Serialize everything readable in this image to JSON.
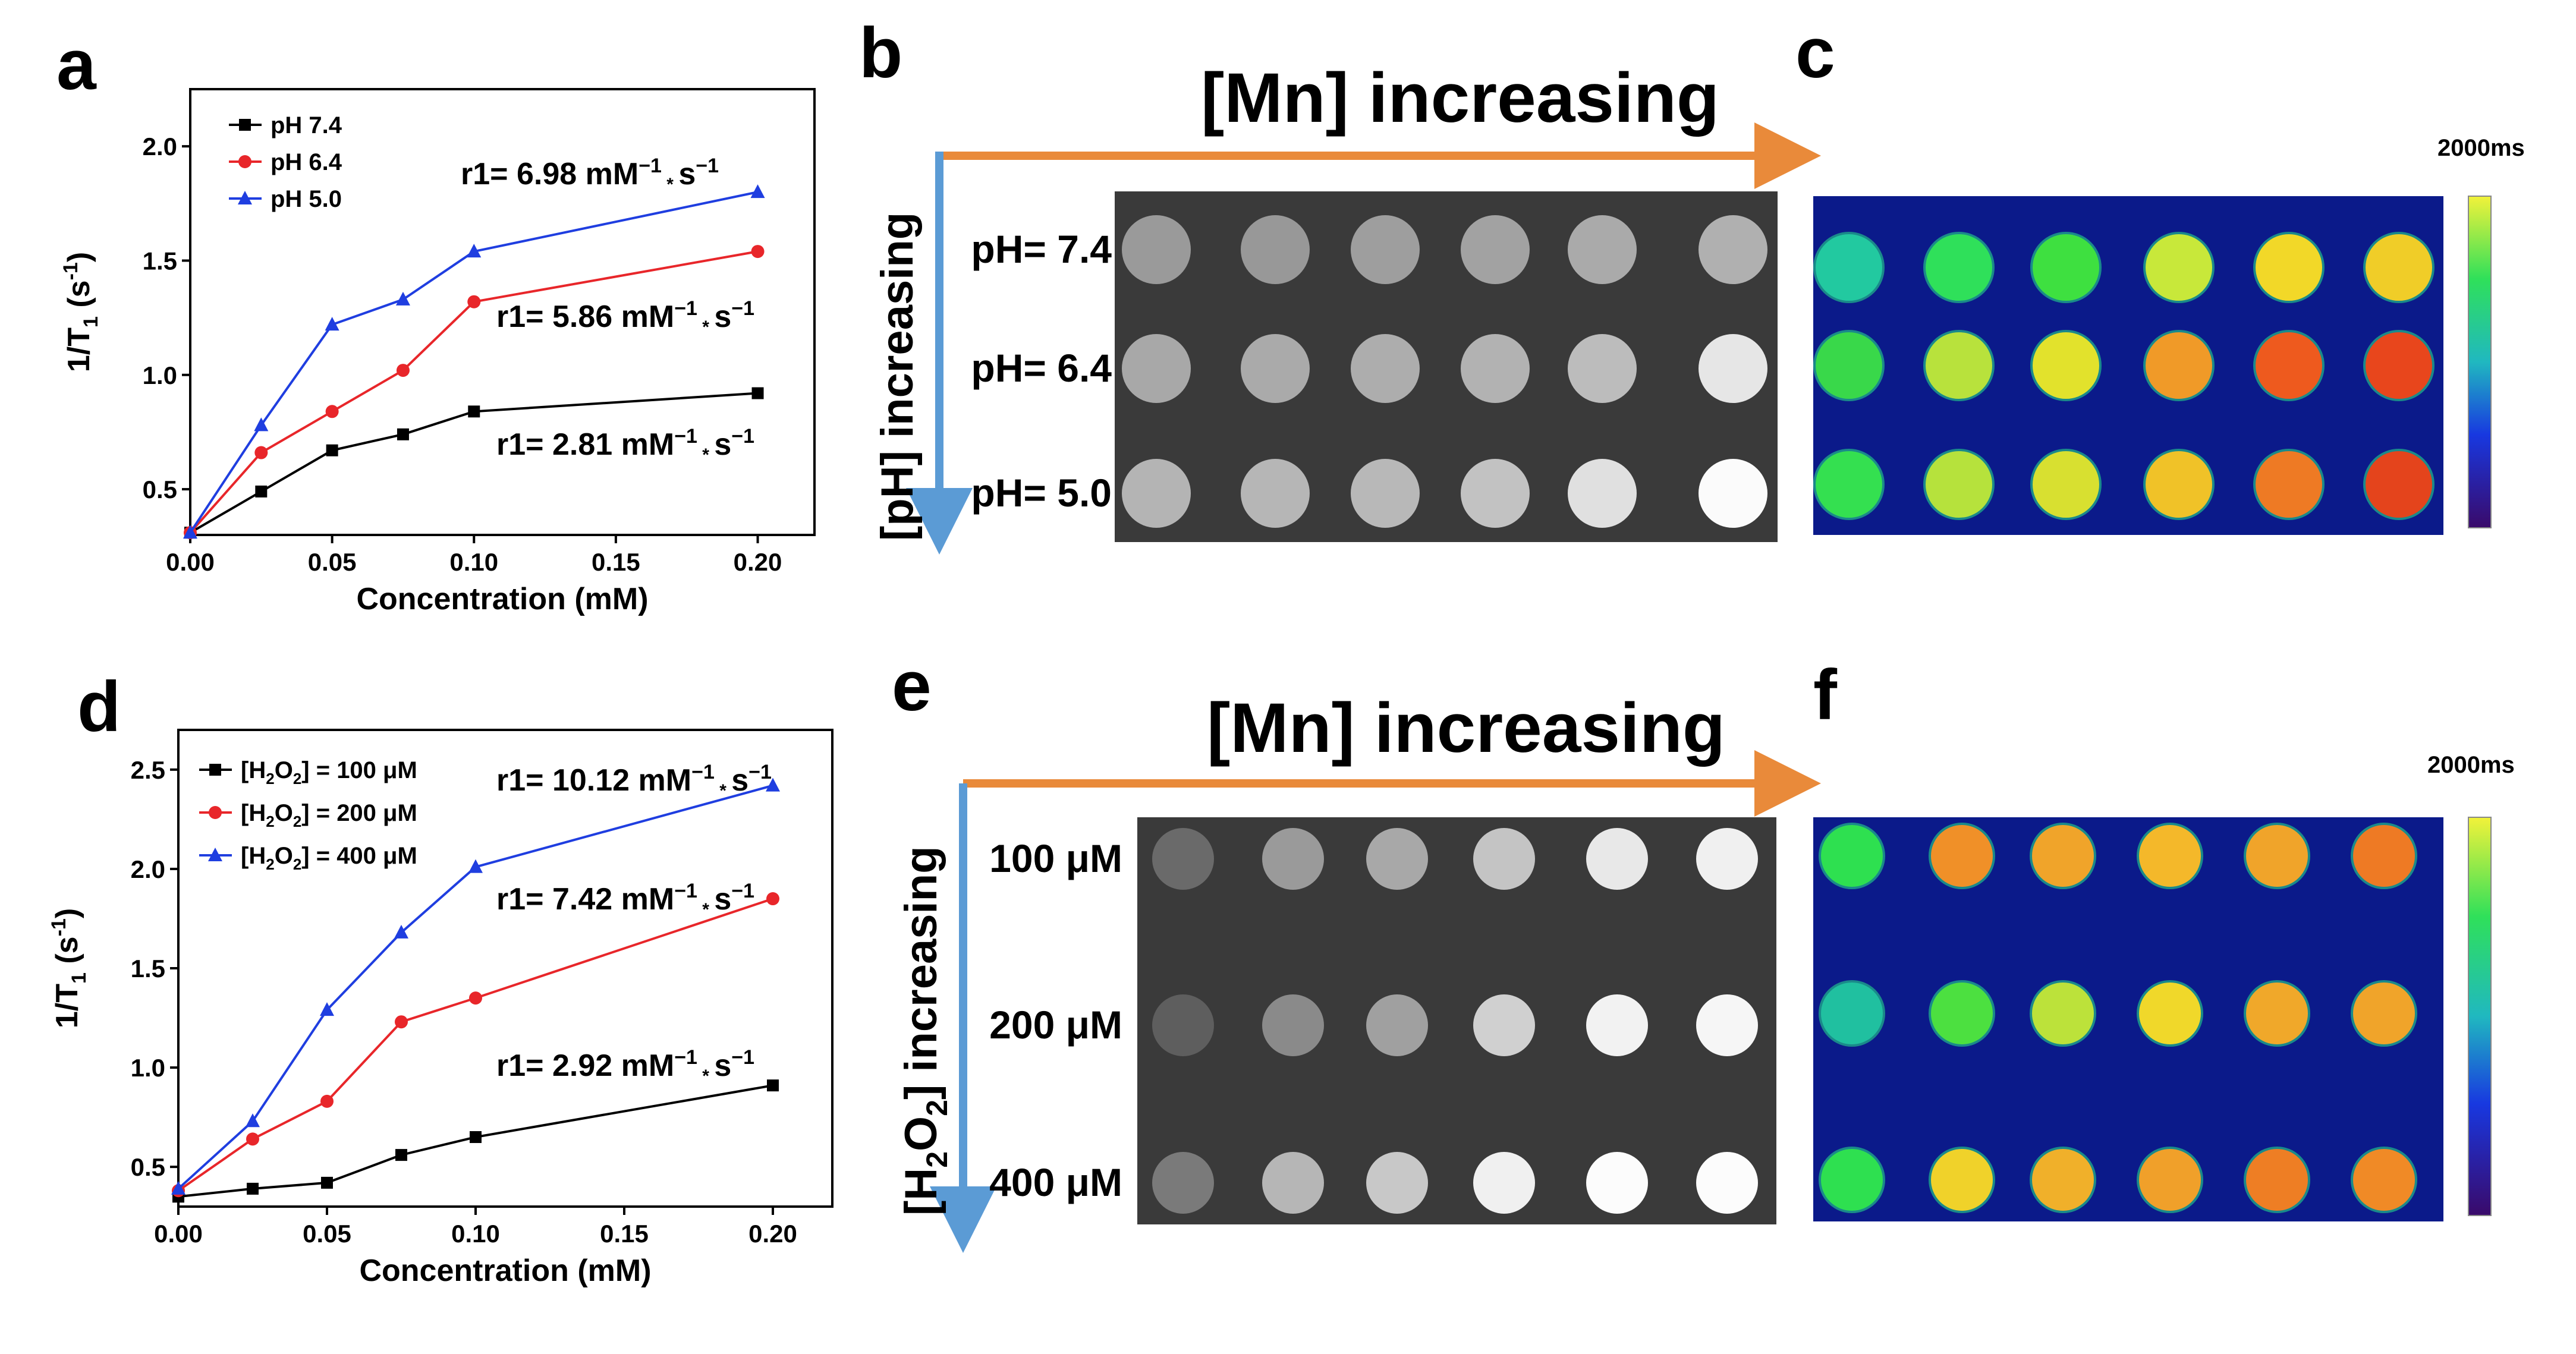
{
  "panels": {
    "a": "a",
    "b": "b",
    "c": "c",
    "d": "d",
    "e": "e",
    "f": "f"
  },
  "arrows": {
    "mn_label": "[Mn] increasing",
    "ph_label": "[pH] increasing",
    "h2o2_label": "[H2O2] increasing"
  },
  "colorbar": {
    "label": "2000ms"
  },
  "colors": {
    "black": "#000000",
    "red": "#e8262a",
    "blue": "#1f3ee0",
    "arrow_orange": "#e98a3a",
    "arrow_blue": "#5b9bd5",
    "map_bg": "#0b1a8a",
    "phantom_bg": "#3a3a3a"
  },
  "panel_b": {
    "row_labels": [
      "pH= 7.4",
      "pH= 6.4",
      "pH= 5.0"
    ],
    "grays": [
      [
        "#9a9a9a",
        "#989898",
        "#9e9e9e",
        "#a2a2a2",
        "#aaaaaa",
        "#b0b0b0"
      ],
      [
        "#a8a8a8",
        "#aaaaaa",
        "#adadad",
        "#b2b2b2",
        "#bcbcbc",
        "#e6e6e6"
      ],
      [
        "#b4b4b4",
        "#b6b6b6",
        "#b8b8b8",
        "#c2c2c2",
        "#e0e0e0",
        "#fbfbfb"
      ]
    ]
  },
  "panel_c": {
    "colors": [
      [
        "#22c9a0",
        "#2fe05a",
        "#3ee040",
        "#c8e83a",
        "#f2d828",
        "#f0cd28"
      ],
      [
        "#39d84a",
        "#b8e23c",
        "#e2e22c",
        "#f09a28",
        "#ee5a1e",
        "#e8461c"
      ],
      [
        "#34e050",
        "#b6e23c",
        "#d8e030",
        "#f0c228",
        "#ee7a24",
        "#e4441c"
      ]
    ]
  },
  "panel_e": {
    "row_labels": [
      "100 μM",
      "200 μM",
      "400 μM"
    ],
    "grays": [
      [
        "#6a6a6a",
        "#9a9a9a",
        "#a8a8a8",
        "#c4c4c4",
        "#e8e8e8",
        "#f0f0f0"
      ],
      [
        "#5e5e5e",
        "#8a8a8a",
        "#a0a0a0",
        "#d0d0d0",
        "#f2f2f2",
        "#f6f6f6"
      ],
      [
        "#7a7a7a",
        "#b6b6b6",
        "#c8c8c8",
        "#f0f0f0",
        "#fcfcfc",
        "#fcfcfc"
      ]
    ]
  },
  "panel_f": {
    "colors": [
      [
        "#2ee050",
        "#f09028",
        "#f0a42a",
        "#f4b82a",
        "#f0a42a",
        "#ee7a24"
      ],
      [
        "#20c0a0",
        "#4ce040",
        "#bce23a",
        "#f0d82a",
        "#f0a82a",
        "#f0a42a"
      ],
      [
        "#2ee050",
        "#f0d22a",
        "#f0b02a",
        "#f0a02a",
        "#ee7e24",
        "#f08a26"
      ]
    ]
  },
  "chart_data": [
    {
      "type": "line",
      "panel": "a",
      "xlabel": "Concentration (mM)",
      "ylabel_main": "1/T",
      "ylabel_sub": "1",
      "ylabel_unit": " (s",
      "ylabel_sup": "-1",
      "ylabel_close": ")",
      "xlim": [
        0,
        0.22
      ],
      "ylim": [
        0.3,
        2.25
      ],
      "xticks": [
        0.0,
        0.05,
        0.1,
        0.15,
        0.2
      ],
      "xtick_labels": [
        "0.00",
        "0.05",
        "0.10",
        "0.15",
        "0.20"
      ],
      "yticks": [
        0.5,
        1.0,
        1.5,
        2.0
      ],
      "ytick_labels": [
        "0.5",
        "1.0",
        "1.5",
        "2.0"
      ],
      "x": [
        0,
        0.025,
        0.05,
        0.075,
        0.1,
        0.2
      ],
      "series": [
        {
          "name": "pH 7.4",
          "marker": "square",
          "color": "#000000",
          "values": [
            0.31,
            0.49,
            0.67,
            0.74,
            0.84,
            0.92
          ],
          "r1_prefix": "r1= 2.81 mM",
          "r1_sup": "−1",
          "r1_suffix": " s",
          "r1_sup2": "−1"
        },
        {
          "name": "pH 6.4",
          "marker": "circle",
          "color": "#e8262a",
          "values": [
            0.31,
            0.66,
            0.84,
            1.02,
            1.32,
            1.54
          ],
          "r1_prefix": "r1= 5.86 mM",
          "r1_sup": "−1",
          "r1_suffix": " s",
          "r1_sup2": "−1"
        },
        {
          "name": "pH 5.0",
          "marker": "triangle",
          "color": "#1f3ee0",
          "values": [
            0.31,
            0.78,
            1.22,
            1.33,
            1.54,
            1.8
          ],
          "r1_prefix": "r1= 6.98 mM",
          "r1_sup": "−1",
          "r1_suffix": " s",
          "r1_sup2": "−1"
        }
      ],
      "legend_placement": "top-left"
    },
    {
      "type": "line",
      "panel": "d",
      "xlabel": "Concentration (mM)",
      "ylabel_main": "1/T",
      "ylabel_sub": "1",
      "ylabel_unit": " (s",
      "ylabel_sup": "-1",
      "ylabel_close": ")",
      "xlim": [
        0,
        0.22
      ],
      "ylim": [
        0.3,
        2.7
      ],
      "xticks": [
        0.0,
        0.05,
        0.1,
        0.15,
        0.2
      ],
      "xtick_labels": [
        "0.00",
        "0.05",
        "0.10",
        "0.15",
        "0.20"
      ],
      "yticks": [
        0.5,
        1.0,
        1.5,
        2.0,
        2.5
      ],
      "ytick_labels": [
        "0.5",
        "1.0",
        "1.5",
        "2.0",
        "2.5"
      ],
      "x": [
        0,
        0.025,
        0.05,
        0.075,
        0.1,
        0.2
      ],
      "series": [
        {
          "name": "[H2O2] = 100 μM",
          "legend_a": "[H",
          "legend_b": "2",
          "legend_c": "O",
          "legend_d": "2",
          "legend_e": "] = 100 μM",
          "marker": "square",
          "color": "#000000",
          "values": [
            0.35,
            0.39,
            0.42,
            0.56,
            0.65,
            0.91
          ],
          "r1_prefix": "r1= 2.92 mM",
          "r1_sup": "−1",
          "r1_suffix": " s",
          "r1_sup2": "−1"
        },
        {
          "name": "[H2O2] = 200 μM",
          "legend_a": "[H",
          "legend_b": "2",
          "legend_c": "O",
          "legend_d": "2",
          "legend_e": "] = 200 μM",
          "marker": "circle",
          "color": "#e8262a",
          "values": [
            0.38,
            0.64,
            0.83,
            1.23,
            1.35,
            1.85
          ],
          "r1_prefix": "r1= 7.42 mM",
          "r1_sup": "−1",
          "r1_suffix": " s",
          "r1_sup2": "−1"
        },
        {
          "name": "[H2O2] = 400 μM",
          "legend_a": "[H",
          "legend_b": "2",
          "legend_c": "O",
          "legend_d": "2",
          "legend_e": "] = 400 μM",
          "marker": "triangle",
          "color": "#1f3ee0",
          "values": [
            0.39,
            0.73,
            1.29,
            1.68,
            2.01,
            2.42
          ],
          "r1_prefix": "r1= 10.12 mM",
          "r1_sup": "−1",
          "r1_suffix": " s",
          "r1_sup2": "−1"
        }
      ],
      "legend_placement": "top-left"
    }
  ]
}
